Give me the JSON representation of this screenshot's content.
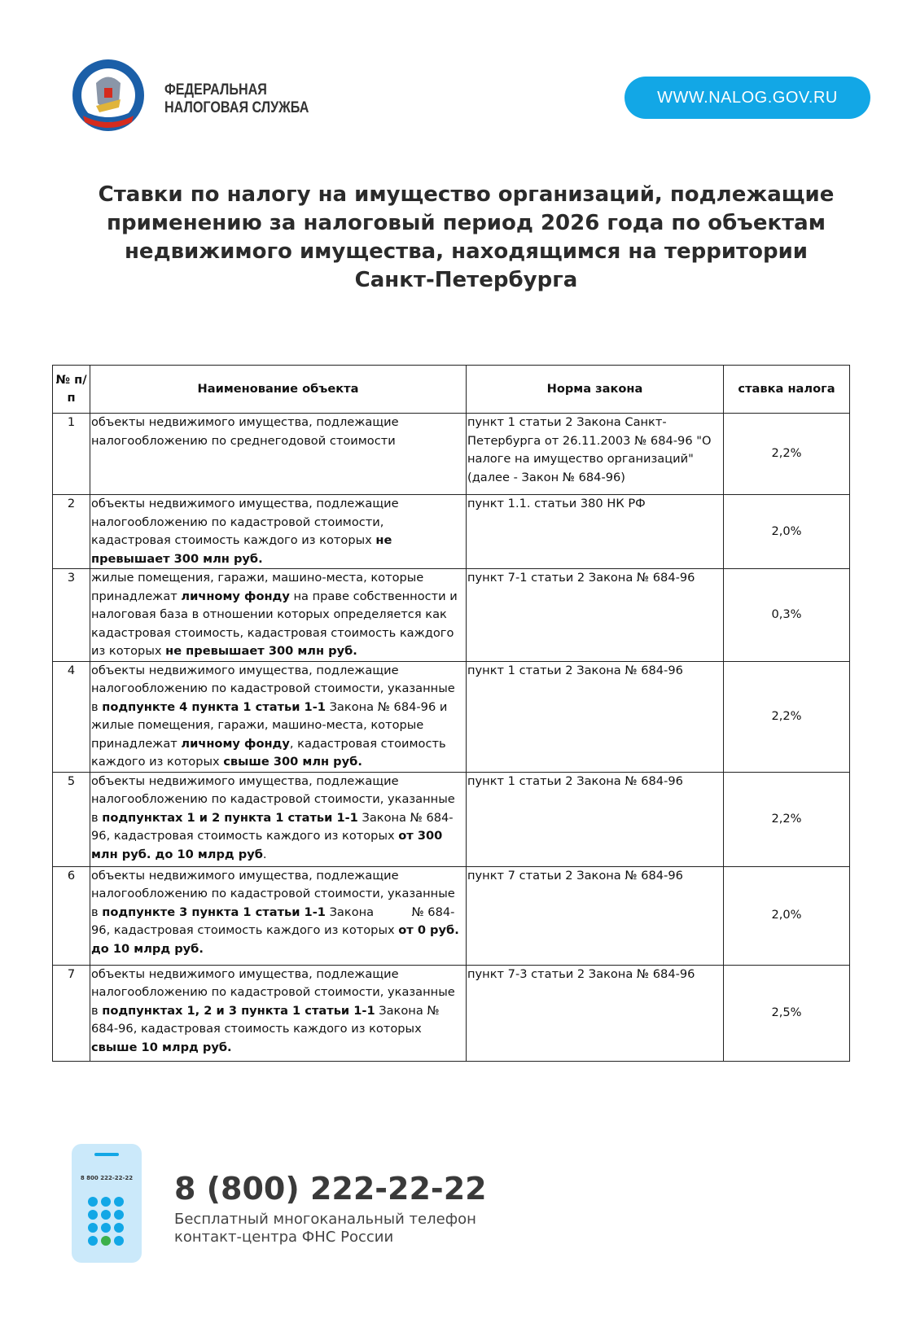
{
  "header": {
    "org_line1": "ФЕДЕРАЛЬНАЯ",
    "org_line2": "НАЛОГОВАЯ СЛУЖБА",
    "logo_text": "ФЕДЕРАЛЬНАЯ НАЛОГОВАЯ СЛУЖБА",
    "url": "WWW.NALOG.GOV.RU",
    "accent": "#12a7e6"
  },
  "title": "Ставки по налогу на имущество организаций, подлежащие применению за налоговый период 2026 года по объектам недвижимого имущества, находящимся на территории Санкт-Петербурга",
  "table": {
    "headers": [
      "№ п/п",
      "Наименование объекта",
      "Норма закона",
      "ставка налога"
    ],
    "rows": [
      {
        "n": "1",
        "obj": [
          {
            "t": "объекты недвижимого имущества, подлежащие налогообложению по среднегодовой стоимости"
          }
        ],
        "law": "пункт 1 статьи 2 Закона Санкт-Петербурга от 26.11.2003  № 684-96 \"О налоге на имущество организаций\" (далее - Закон № 684-96)",
        "rate": "2,2%"
      },
      {
        "n": "2",
        "obj": [
          {
            "t": "объекты недвижимого имущества, подлежащие налогообложению по кадастровой стоимости, кадастровая стоимость каждого из которых "
          },
          {
            "t": "не превышает 300 млн руб.",
            "b": true
          }
        ],
        "law": "пункт 1.1. статьи 380 НК РФ",
        "rate": "2,0%"
      },
      {
        "n": "3",
        "obj": [
          {
            "t": "жилые помещения, гаражи, машино-места, которые принадлежат "
          },
          {
            "t": "личному фонду",
            "b": true
          },
          {
            "t": " на праве собственности и налоговая база в отношении которых определяется как кадастровая стоимость, кадастровая стоимость каждого из которых "
          },
          {
            "t": "не превышает 300 млн руб.",
            "b": true
          }
        ],
        "law": "пункт 7-1 статьи 2 Закона № 684-96",
        "rate": "0,3%"
      },
      {
        "n": "4",
        "obj": [
          {
            "t": "объекты недвижимого имущества, подлежащие налогообложению по кадастровой стоимости, указанные в "
          },
          {
            "t": "подпункте 4 пункта 1 статьи 1-1",
            "b": true
          },
          {
            "t": " Закона № 684-96 и жилые помещения, гаражи, машино-места, которые принадлежат "
          },
          {
            "t": "личному фонду",
            "b": true
          },
          {
            "t": ", кадастровая стоимость каждого из которых "
          },
          {
            "t": "свыше 300 млн руб.",
            "b": true
          }
        ],
        "law": "пункт 1 статьи 2 Закона № 684-96",
        "rate": "2,2%"
      },
      {
        "n": "5",
        "obj": [
          {
            "t": "объекты недвижимого имущества, подлежащие налогообложению по кадастровой стоимости, указанные в "
          },
          {
            "t": "подпунктах 1 и 2 пункта 1 статьи 1-1",
            "b": true
          },
          {
            "t": " Закона № 684-96, кадастровая стоимость каждого из которых "
          },
          {
            "t": "от 300 млн руб. до 10 млрд руб",
            "b": true
          },
          {
            "t": "."
          }
        ],
        "law": "пункт 1 статьи 2 Закона № 684-96",
        "rate": "2,2%"
      },
      {
        "n": "6",
        "obj": [
          {
            "t": "объекты недвижимого имущества, подлежащие налогообложению по кадастровой стоимости, указанные в "
          },
          {
            "t": "подпункте 3 пункта 1 статьи 1-1",
            "b": true
          },
          {
            "t": " Закона          № 684-96, кадастровая стоимость каждого из которых "
          },
          {
            "t": "от 0 руб. до 10 млрд руб.",
            "b": true
          }
        ],
        "law": "пункт 7 статьи 2 Закона № 684-96",
        "rate": "2,0%"
      },
      {
        "n": "7",
        "obj": [
          {
            "t": "объекты недвижимого имущества, подлежащие налогообложению по кадастровой стоимости, указанные в "
          },
          {
            "t": "подпунктах 1, 2 и 3 пункта 1 статьи 1-1",
            "b": true
          },
          {
            "t": " Закона № 684-96, кадастровая стоимость каждого из которых "
          },
          {
            "t": "свыше 10 млрд руб.",
            "b": true
          }
        ],
        "law": "пункт 7-3 статьи 2 Закона № 684-96",
        "rate": "2,5%"
      }
    ]
  },
  "footer": {
    "phone_small": "8 800 222-22-22",
    "phone": "8 (800) 222-22-22",
    "line1": "Бесплатный многоканальный телефон",
    "line2": "контакт-центра ФНС России"
  }
}
